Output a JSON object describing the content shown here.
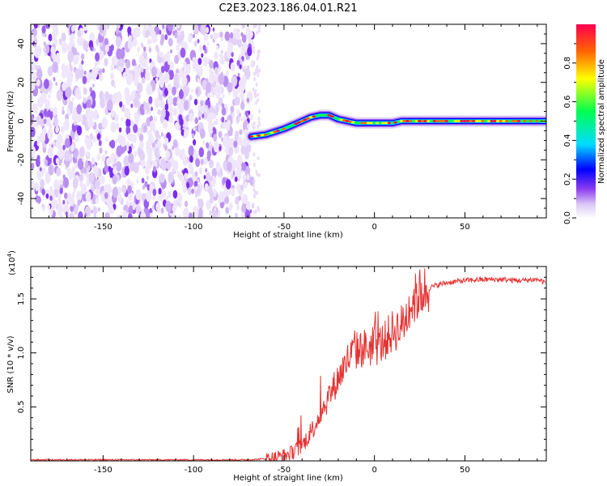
{
  "figure": {
    "title": "C2E3.2023.186.04.01.R21"
  },
  "chart_data": [
    {
      "type": "heatmap",
      "title": "C2E3.2023.186.04.01.R21",
      "xlabel": "Height of straight line (km)",
      "ylabel": "Frequency (Hz)",
      "xlim": [
        -190,
        95
      ],
      "ylim": [
        -50,
        50
      ],
      "x_ticks": [
        -150,
        -100,
        -50,
        0,
        50
      ],
      "y_ticks": [
        -40,
        -20,
        0,
        20,
        40
      ],
      "noise_region_x": [
        -190,
        -67
      ],
      "ridge": {
        "x": [
          -68,
          -60,
          -50,
          -45,
          -40,
          -35,
          -30,
          -25,
          -20,
          -15,
          -10,
          -5,
          0,
          5,
          10,
          15,
          20,
          30,
          40,
          50,
          60,
          70,
          80,
          90,
          95
        ],
        "frequency_hz": [
          -8,
          -7,
          -4,
          -2,
          0,
          2,
          3,
          3,
          1,
          0,
          -1,
          -1,
          -1,
          -1,
          -1,
          0,
          0,
          0,
          0,
          0,
          0,
          0,
          0,
          0,
          0
        ]
      },
      "colorbar": {
        "label": "Normalized spectral amplitude",
        "range": [
          0,
          1
        ],
        "ticks": [
          0.0,
          0.2,
          0.4,
          0.6,
          0.8
        ],
        "colormap": [
          "#ffffff",
          "#dcc8f5",
          "#8c3cf0",
          "#0000ff",
          "#00dcff",
          "#00ff50",
          "#ffff00",
          "#ff6400",
          "#ff0050"
        ]
      }
    },
    {
      "type": "line",
      "xlabel": "Height of straight line (km)",
      "ylabel": "SNR (10 * v/v)",
      "y_multiplier": "(x10",
      "y_exponent": "4",
      "xlim": [
        -190,
        95
      ],
      "ylim": [
        0,
        1.8
      ],
      "x_ticks": [
        -150,
        -100,
        -50,
        0,
        50
      ],
      "y_ticks": [
        0.5,
        1.0,
        1.5
      ],
      "y_tick_labels": [
        "0.5",
        "1.0",
        "1.5"
      ],
      "color": "#e63232",
      "series": [
        {
          "x": [
            -190,
            -170,
            -150,
            -130,
            -110,
            -90,
            -70,
            -60,
            -55,
            -50,
            -45,
            -40,
            -37,
            -34,
            -31,
            -28,
            -25,
            -22,
            -19,
            -16,
            -13,
            -10,
            -5,
            0,
            5,
            10,
            15,
            18,
            20,
            25,
            30,
            35,
            40,
            50,
            60,
            70,
            80,
            90,
            95
          ],
          "values": [
            0.01,
            0.01,
            0.01,
            0.01,
            0.01,
            0.01,
            0.01,
            0.02,
            0.03,
            0.05,
            0.08,
            0.14,
            0.22,
            0.3,
            0.4,
            0.5,
            0.6,
            0.7,
            0.8,
            0.9,
            0.98,
            1.02,
            1.05,
            1.05,
            1.1,
            1.2,
            1.25,
            1.35,
            1.45,
            1.55,
            1.6,
            1.63,
            1.65,
            1.67,
            1.68,
            1.68,
            1.67,
            1.68,
            1.65
          ]
        }
      ]
    }
  ]
}
